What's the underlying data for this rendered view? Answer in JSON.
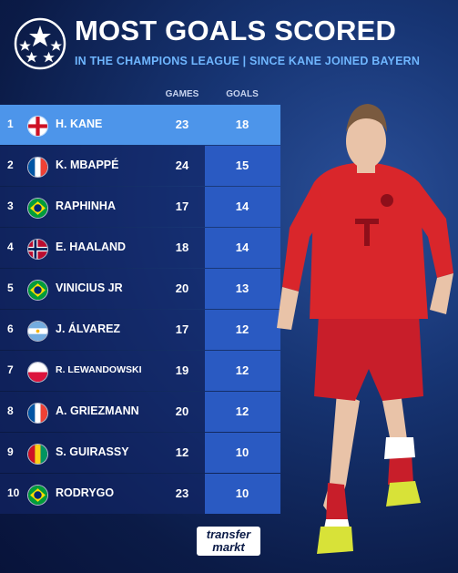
{
  "header": {
    "title": "MOST GOALS SCORED",
    "subtitle": "IN THE CHAMPIONS LEAGUE | SINCE KANE JOINED BAYERN"
  },
  "columns": {
    "games": "GAMES",
    "goals": "GOALS"
  },
  "rows": [
    {
      "rank": "1",
      "name": "H. KANE",
      "games": "23",
      "goals": "18",
      "flag": "england-flag-icon"
    },
    {
      "rank": "2",
      "name": "K. MBAPPÉ",
      "games": "24",
      "goals": "15",
      "flag": "france-flag-icon"
    },
    {
      "rank": "3",
      "name": "RAPHINHA",
      "games": "17",
      "goals": "14",
      "flag": "brazil-flag-icon"
    },
    {
      "rank": "4",
      "name": "E. HAALAND",
      "games": "18",
      "goals": "14",
      "flag": "norway-flag-icon"
    },
    {
      "rank": "5",
      "name": "VINICIUS JR",
      "games": "20",
      "goals": "13",
      "flag": "brazil-flag-icon"
    },
    {
      "rank": "6",
      "name": "J. ÁLVAREZ",
      "games": "17",
      "goals": "12",
      "flag": "argentina-flag-icon"
    },
    {
      "rank": "7",
      "name": "R. LEWANDOWSKI",
      "games": "19",
      "goals": "12",
      "flag": "poland-flag-icon"
    },
    {
      "rank": "8",
      "name": "A. GRIEZMANN",
      "games": "20",
      "goals": "12",
      "flag": "france-flag-icon"
    },
    {
      "rank": "9",
      "name": "S. GUIRASSY",
      "games": "12",
      "goals": "10",
      "flag": "guinea-flag-icon"
    },
    {
      "rank": "10",
      "name": "RODRYGO",
      "games": "23",
      "goals": "10",
      "flag": "brazil-flag-icon"
    }
  ],
  "brand": {
    "line1": "transfer",
    "line2": "markt"
  },
  "colors": {
    "highlight": "#4d95ea",
    "goals_cell": "#2a5ac2",
    "subtitle": "#6fb6ff",
    "player_kit": "#d9262b"
  }
}
